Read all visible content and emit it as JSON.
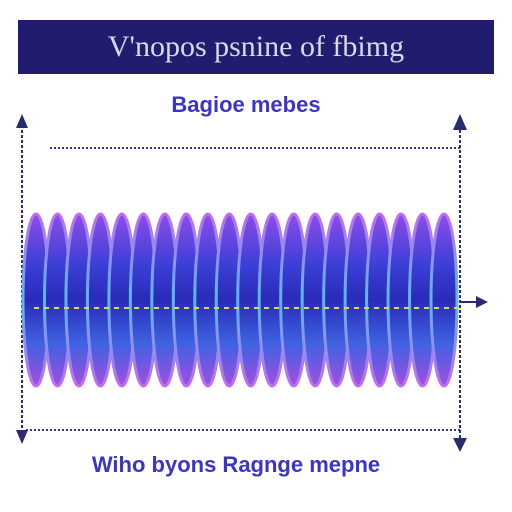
{
  "header": {
    "title": "V'nopos psnine of fbimg"
  },
  "labels": {
    "top": "Bagioe mebes",
    "bottom": "Wiho byons Ragnge mepne"
  }
}
